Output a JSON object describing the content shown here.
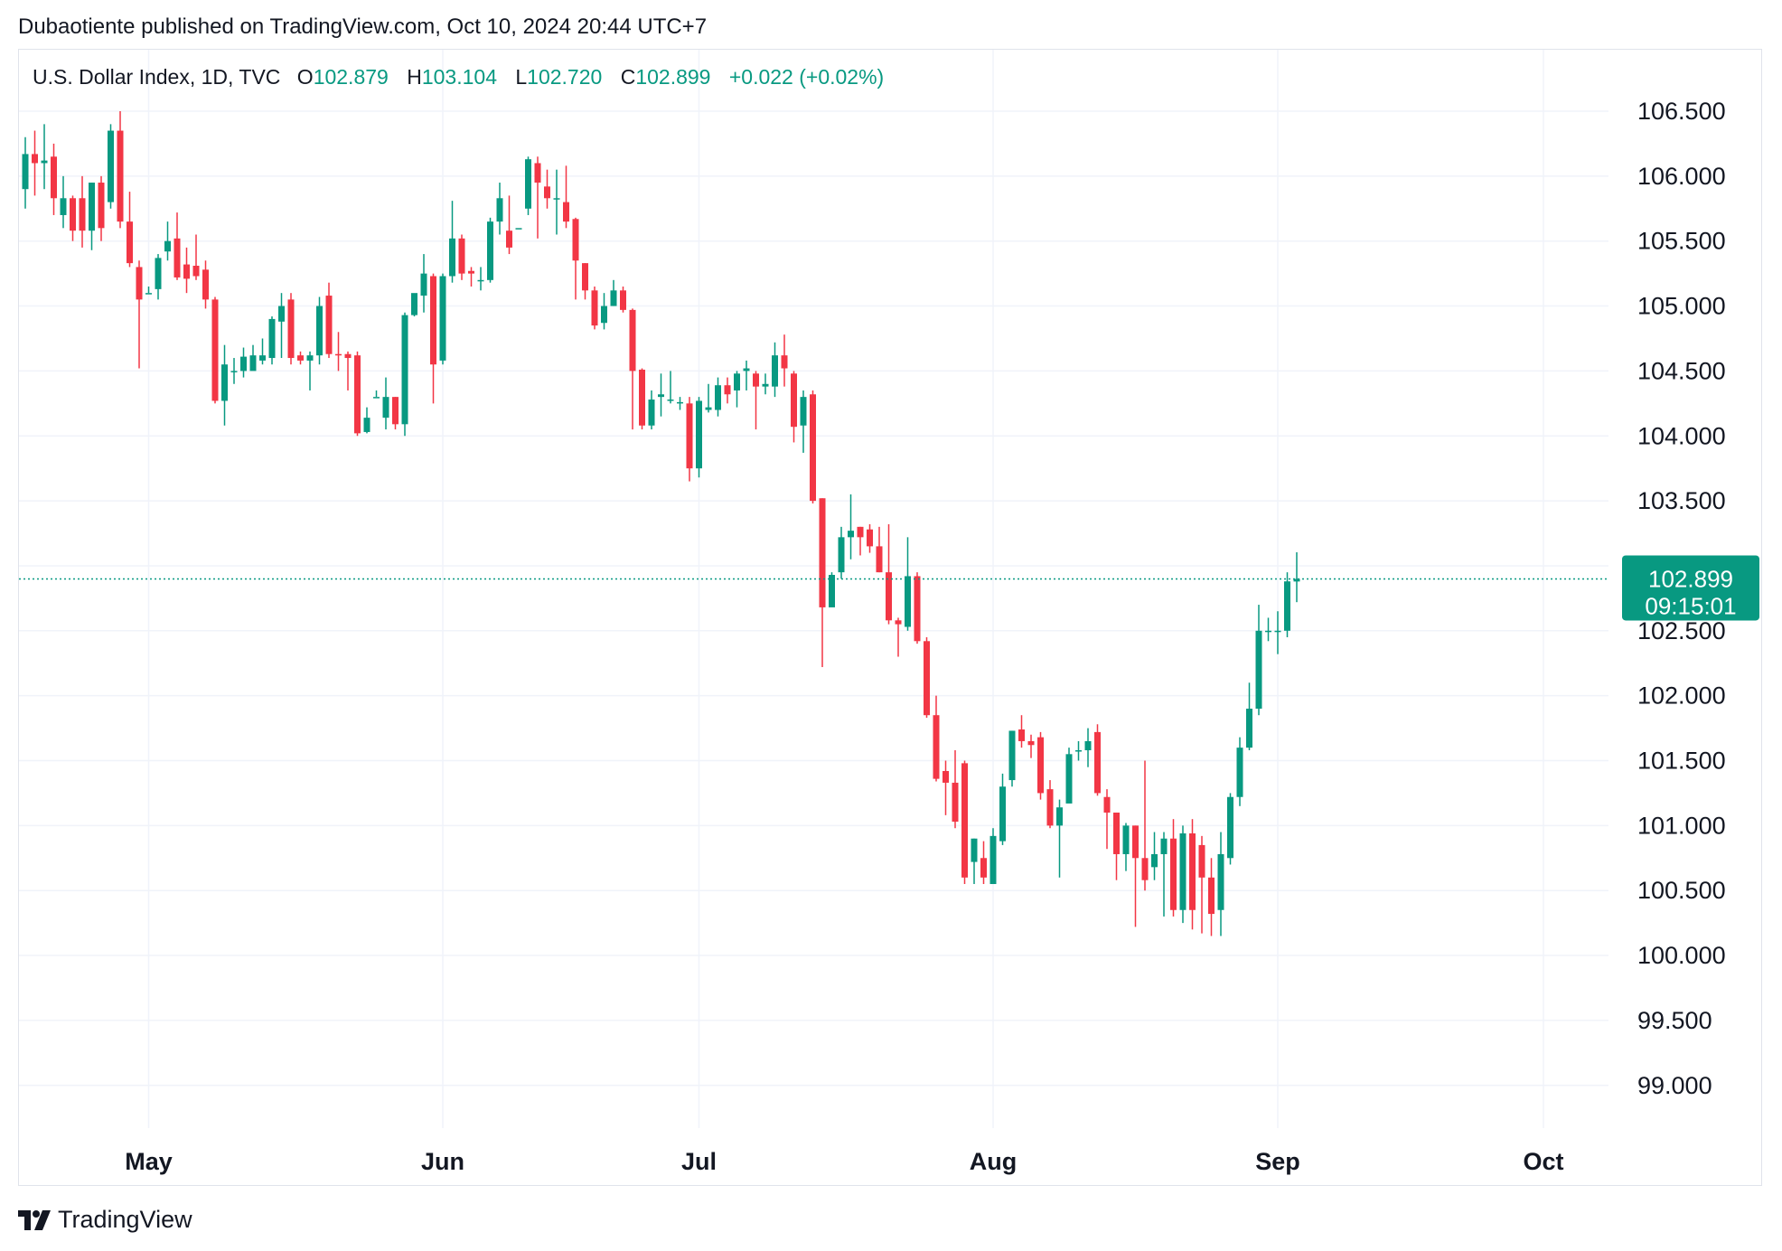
{
  "publisher_line": "Dubaotiente published on TradingView.com, Oct 10, 2024 20:44 UTC+7",
  "legend": {
    "symbol": "U.S. Dollar Index, 1D, TVC",
    "open_label": "O",
    "open": "102.879",
    "high_label": "H",
    "high": "103.104",
    "low_label": "L",
    "low": "102.720",
    "close_label": "C",
    "close": "102.899",
    "change": "+0.022 (+0.02%)"
  },
  "price_label": {
    "price": "102.899",
    "countdown": "09:15:01"
  },
  "brand": {
    "name": "TradingView",
    "icon": "tradingview-logo-icon"
  },
  "colors": {
    "up": "#089981",
    "down": "#f23645",
    "grid": "#f0f3fa",
    "text": "#131722"
  },
  "chart_data": {
    "type": "candlestick",
    "ylim": [
      98.5,
      106.9
    ],
    "yticks": [
      "99.000",
      "99.500",
      "100.000",
      "100.500",
      "101.000",
      "101.500",
      "102.000",
      "102.500",
      "103.000",
      "103.500",
      "104.000",
      "104.500",
      "105.000",
      "105.500",
      "106.000",
      "106.500"
    ],
    "month_labels": [
      {
        "label": "May",
        "index": 13
      },
      {
        "label": "Jun",
        "index": 44
      },
      {
        "label": "Jul",
        "index": 71
      },
      {
        "label": "Aug",
        "index": 102
      },
      {
        "label": "Sep",
        "index": 132
      },
      {
        "label": "Oct",
        "index": 160
      }
    ],
    "last_price": 102.899,
    "candles": [
      [
        105.9,
        106.17,
        106.3,
        105.75
      ],
      [
        106.17,
        106.1,
        106.35,
        105.85
      ],
      [
        106.1,
        106.12,
        106.4,
        105.9
      ],
      [
        106.15,
        105.83,
        106.25,
        105.7
      ],
      [
        105.7,
        105.83,
        106.0,
        105.6
      ],
      [
        105.83,
        105.58,
        105.85,
        105.5
      ],
      [
        105.83,
        105.58,
        106.0,
        105.45
      ],
      [
        105.58,
        105.95,
        105.95,
        105.43
      ],
      [
        105.95,
        105.6,
        106.0,
        105.5
      ],
      [
        105.8,
        106.35,
        106.4,
        105.75
      ],
      [
        106.35,
        105.65,
        106.5,
        105.6
      ],
      [
        105.65,
        105.33,
        105.88,
        105.3
      ],
      [
        105.3,
        105.05,
        105.35,
        104.52
      ],
      [
        105.1,
        105.1,
        105.15,
        105.1
      ],
      [
        105.13,
        105.37,
        105.4,
        105.05
      ],
      [
        105.42,
        105.5,
        105.65,
        105.35
      ],
      [
        105.52,
        105.22,
        105.72,
        105.2
      ],
      [
        105.32,
        105.21,
        105.45,
        105.1
      ],
      [
        105.31,
        105.23,
        105.55,
        105.2
      ],
      [
        105.28,
        105.05,
        105.35,
        104.98
      ],
      [
        105.05,
        104.27,
        105.07,
        104.25
      ],
      [
        104.27,
        104.55,
        104.7,
        104.08
      ],
      [
        104.5,
        104.5,
        104.6,
        104.4
      ],
      [
        104.5,
        104.61,
        104.68,
        104.45
      ],
      [
        104.5,
        104.62,
        104.7,
        104.52
      ],
      [
        104.58,
        104.62,
        104.75,
        104.55
      ],
      [
        104.6,
        104.9,
        104.92,
        104.55
      ],
      [
        104.88,
        105.0,
        105.1,
        104.6
      ],
      [
        105.05,
        104.6,
        105.1,
        104.55
      ],
      [
        104.62,
        104.58,
        104.65,
        104.55
      ],
      [
        104.58,
        104.62,
        104.65,
        104.35
      ],
      [
        104.62,
        105.0,
        105.07,
        104.55
      ],
      [
        105.08,
        104.63,
        105.18,
        104.6
      ],
      [
        104.63,
        104.62,
        104.8,
        104.5
      ],
      [
        104.63,
        104.6,
        104.65,
        104.35
      ],
      [
        104.62,
        104.02,
        104.65,
        104.0
      ],
      [
        104.03,
        104.14,
        104.22,
        104.02
      ],
      [
        104.3,
        104.3,
        104.35,
        104.3
      ],
      [
        104.14,
        104.3,
        104.45,
        104.05
      ],
      [
        104.3,
        104.09,
        104.3,
        104.05
      ],
      [
        104.09,
        104.93,
        104.95,
        104.0
      ],
      [
        104.93,
        105.1,
        105.05,
        104.92
      ],
      [
        105.08,
        105.25,
        105.4,
        104.95
      ],
      [
        105.23,
        104.55,
        105.25,
        104.25
      ],
      [
        104.58,
        105.23,
        105.25,
        104.55
      ],
      [
        105.23,
        105.52,
        105.81,
        105.18
      ],
      [
        105.52,
        105.25,
        105.55,
        105.2
      ],
      [
        105.27,
        105.25,
        105.3,
        105.15
      ],
      [
        105.2,
        105.2,
        105.3,
        105.12
      ],
      [
        105.2,
        105.65,
        105.68,
        105.18
      ],
      [
        105.65,
        105.83,
        105.95,
        105.55
      ],
      [
        105.58,
        105.45,
        105.85,
        105.4
      ],
      [
        105.6,
        105.6,
        105.6,
        105.6
      ],
      [
        105.75,
        106.13,
        106.15,
        105.7
      ],
      [
        106.1,
        105.95,
        106.15,
        105.52
      ],
      [
        105.92,
        105.83,
        106.05,
        105.75
      ],
      [
        105.83,
        105.83,
        106.05,
        105.55
      ],
      [
        105.8,
        105.65,
        106.08,
        105.6
      ],
      [
        105.67,
        105.35,
        105.68,
        105.05
      ],
      [
        105.33,
        105.12,
        105.33,
        105.05
      ],
      [
        105.12,
        104.85,
        105.15,
        104.82
      ],
      [
        104.87,
        105.0,
        105.1,
        104.82
      ],
      [
        105.0,
        105.12,
        105.2,
        105.0
      ],
      [
        105.12,
        104.97,
        105.15,
        104.95
      ],
      [
        104.97,
        104.5,
        104.98,
        104.05
      ],
      [
        104.51,
        104.08,
        104.52,
        104.05
      ],
      [
        104.08,
        104.28,
        104.35,
        104.05
      ],
      [
        104.3,
        104.32,
        104.48,
        104.15
      ],
      [
        104.28,
        104.28,
        104.5,
        104.25
      ],
      [
        104.25,
        104.26,
        104.3,
        104.2
      ],
      [
        104.25,
        103.75,
        104.3,
        103.65
      ],
      [
        103.75,
        104.27,
        104.3,
        103.68
      ],
      [
        104.2,
        104.22,
        104.4,
        104.18
      ],
      [
        104.2,
        104.39,
        104.45,
        104.15
      ],
      [
        104.39,
        104.32,
        104.45,
        104.25
      ],
      [
        104.35,
        104.48,
        104.5,
        104.22
      ],
      [
        104.5,
        104.52,
        104.58,
        104.35
      ],
      [
        104.48,
        104.38,
        104.5,
        104.05
      ],
      [
        104.38,
        104.4,
        104.48,
        104.32
      ],
      [
        104.38,
        104.62,
        104.72,
        104.3
      ],
      [
        104.62,
        104.52,
        104.78,
        104.38
      ],
      [
        104.48,
        104.07,
        104.5,
        103.95
      ],
      [
        104.08,
        104.3,
        104.35,
        103.87
      ],
      [
        104.32,
        103.5,
        104.35,
        103.48
      ],
      [
        103.52,
        102.68,
        103.52,
        102.22
      ],
      [
        102.68,
        102.93,
        102.95,
        102.72
      ],
      [
        102.95,
        103.22,
        103.3,
        102.9
      ],
      [
        103.22,
        103.27,
        103.55,
        103.05
      ],
      [
        103.3,
        103.22,
        103.3,
        103.08
      ],
      [
        103.28,
        103.15,
        103.32,
        103.1
      ],
      [
        103.15,
        102.95,
        103.3,
        102.95
      ],
      [
        102.95,
        102.58,
        103.32,
        102.55
      ],
      [
        102.58,
        102.55,
        102.6,
        102.3
      ],
      [
        102.53,
        102.92,
        103.22,
        102.5
      ],
      [
        102.92,
        102.42,
        102.95,
        102.4
      ],
      [
        102.42,
        101.85,
        102.45,
        101.83
      ],
      [
        101.85,
        101.36,
        102.0,
        101.34
      ],
      [
        101.42,
        101.33,
        101.5,
        101.08
      ],
      [
        101.33,
        101.03,
        101.58,
        100.98
      ],
      [
        101.48,
        100.6,
        101.5,
        100.55
      ],
      [
        100.72,
        100.9,
        100.9,
        100.55
      ],
      [
        100.75,
        100.6,
        100.88,
        100.55
      ],
      [
        100.55,
        100.92,
        100.98,
        100.55
      ],
      [
        100.88,
        101.3,
        101.4,
        100.85
      ],
      [
        101.35,
        101.73,
        101.73,
        101.3
      ],
      [
        101.74,
        101.65,
        101.85,
        101.6
      ],
      [
        101.65,
        101.62,
        101.7,
        101.52
      ],
      [
        101.68,
        101.25,
        101.72,
        101.2
      ],
      [
        101.28,
        101.0,
        101.35,
        100.98
      ],
      [
        101.0,
        101.14,
        101.2,
        100.6
      ],
      [
        101.17,
        101.55,
        101.6,
        101.2
      ],
      [
        101.57,
        101.58,
        101.65,
        101.5
      ],
      [
        101.58,
        101.65,
        101.75,
        101.45
      ],
      [
        101.72,
        101.25,
        101.78,
        101.23
      ],
      [
        101.22,
        101.1,
        101.28,
        100.82
      ],
      [
        101.1,
        100.78,
        101.1,
        100.58
      ],
      [
        100.78,
        101.0,
        101.02,
        100.65
      ],
      [
        101.0,
        100.75,
        101.0,
        100.22
      ],
      [
        100.75,
        100.58,
        101.5,
        100.5
      ],
      [
        100.68,
        100.78,
        100.95,
        100.58
      ],
      [
        100.78,
        100.9,
        100.95,
        100.3
      ],
      [
        100.9,
        100.35,
        101.05,
        100.3
      ],
      [
        100.35,
        100.94,
        101.0,
        100.25
      ],
      [
        100.94,
        100.35,
        101.05,
        100.2
      ],
      [
        100.85,
        100.6,
        100.92,
        100.17
      ],
      [
        100.6,
        100.32,
        100.75,
        100.15
      ],
      [
        100.35,
        100.78,
        100.95,
        100.15
      ],
      [
        100.75,
        101.22,
        101.25,
        100.7
      ],
      [
        101.22,
        101.6,
        101.68,
        101.15
      ],
      [
        101.6,
        101.9,
        102.1,
        101.58
      ],
      [
        101.9,
        102.5,
        102.7,
        101.85
      ],
      [
        102.5,
        102.5,
        102.6,
        102.42
      ],
      [
        102.5,
        102.5,
        102.65,
        102.32
      ],
      [
        102.5,
        102.88,
        102.95,
        102.45
      ],
      [
        102.879,
        102.899,
        103.104,
        102.72
      ]
    ]
  }
}
